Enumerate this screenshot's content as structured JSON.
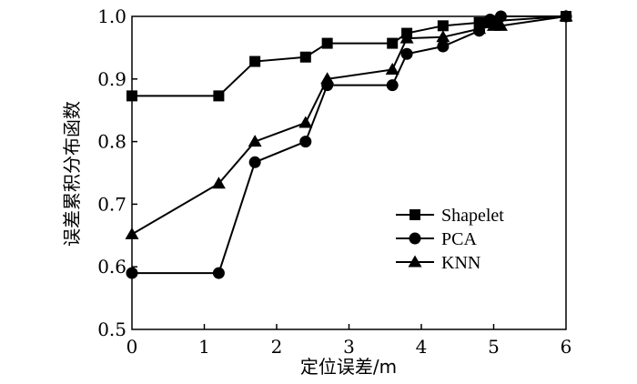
{
  "chart_data": {
    "type": "line",
    "xlabel": "定位误差/m",
    "ylabel": "误差累积分布函数",
    "xlim": [
      0,
      6
    ],
    "ylim": [
      0.5,
      1.0
    ],
    "x_ticks": [
      "0",
      "1",
      "2",
      "3",
      "4",
      "5",
      "6"
    ],
    "y_ticks": [
      "0.5",
      "0.6",
      "0.7",
      "0.8",
      "0.9",
      "1.0"
    ],
    "grid": false,
    "legend_position": "lower-right",
    "series": [
      {
        "name": "Shapelet",
        "marker": "square",
        "x": [
          0,
          1.2,
          1.7,
          2.4,
          2.7,
          3.6,
          3.8,
          4.3,
          4.8,
          4.95,
          5.05,
          6
        ],
        "y": [
          0.873,
          0.873,
          0.928,
          0.935,
          0.957,
          0.957,
          0.973,
          0.985,
          0.99,
          0.99,
          0.993,
          1.0
        ]
      },
      {
        "name": "PCA",
        "marker": "circle",
        "x": [
          0,
          1.2,
          1.7,
          2.4,
          2.7,
          3.6,
          3.8,
          4.3,
          4.8,
          4.95,
          5.1,
          6
        ],
        "y": [
          0.59,
          0.59,
          0.767,
          0.8,
          0.89,
          0.89,
          0.94,
          0.952,
          0.977,
          0.995,
          1.0,
          1.0
        ]
      },
      {
        "name": "KNN",
        "marker": "triangle",
        "x": [
          0,
          1.2,
          1.7,
          2.4,
          2.7,
          3.6,
          3.8,
          4.3,
          4.8,
          5.0,
          5.1,
          6
        ],
        "y": [
          0.652,
          0.733,
          0.8,
          0.83,
          0.9,
          0.915,
          0.965,
          0.967,
          0.98,
          0.985,
          0.985,
          1.0
        ]
      }
    ]
  }
}
